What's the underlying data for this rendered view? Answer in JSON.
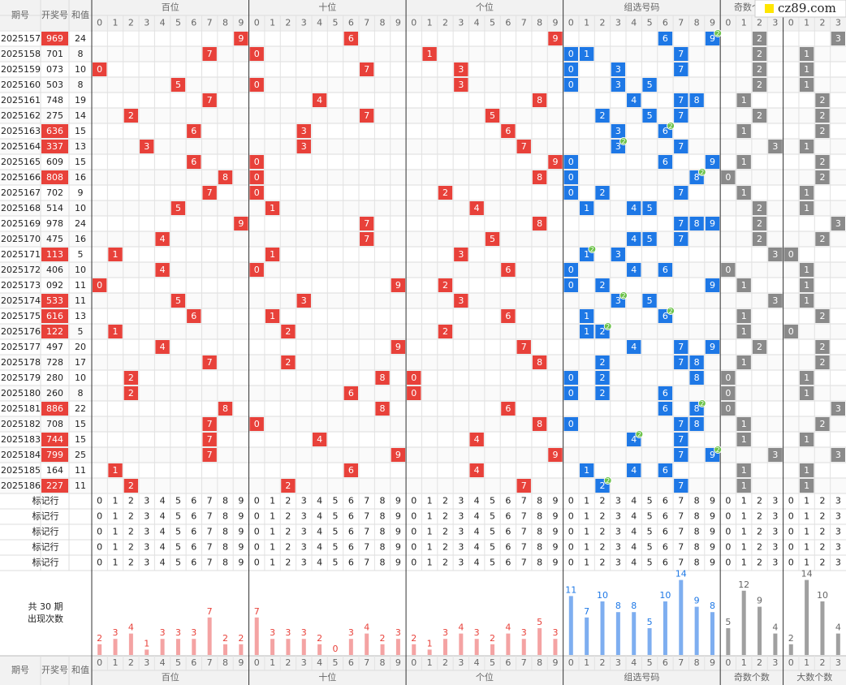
{
  "header": {
    "issue": "期号",
    "number": "开奖号",
    "sum": "和值",
    "groups": [
      "百位",
      "十位",
      "个位",
      "组选号码",
      "奇数个数",
      "大数个数"
    ]
  },
  "digits": [
    0,
    1,
    2,
    3,
    4,
    5,
    6,
    7,
    8,
    9
  ],
  "count_digits": [
    0,
    1,
    2,
    3
  ],
  "rows": [
    {
      "issue": "2025157",
      "number": "969",
      "sum": 24
    },
    {
      "issue": "2025158",
      "number": "701",
      "sum": 8
    },
    {
      "issue": "2025159",
      "number": "073",
      "sum": 10
    },
    {
      "issue": "2025160",
      "number": "503",
      "sum": 8
    },
    {
      "issue": "2025161",
      "number": "748",
      "sum": 19
    },
    {
      "issue": "2025162",
      "number": "275",
      "sum": 14
    },
    {
      "issue": "2025163",
      "number": "636",
      "sum": 15
    },
    {
      "issue": "2025164",
      "number": "337",
      "sum": 13
    },
    {
      "issue": "2025165",
      "number": "609",
      "sum": 15
    },
    {
      "issue": "2025166",
      "number": "808",
      "sum": 16
    },
    {
      "issue": "2025167",
      "number": "702",
      "sum": 9
    },
    {
      "issue": "2025168",
      "number": "514",
      "sum": 10
    },
    {
      "issue": "2025169",
      "number": "978",
      "sum": 24
    },
    {
      "issue": "2025170",
      "number": "475",
      "sum": 16
    },
    {
      "issue": "2025171",
      "number": "113",
      "sum": 5
    },
    {
      "issue": "2025172",
      "number": "406",
      "sum": 10
    },
    {
      "issue": "2025173",
      "number": "092",
      "sum": 11
    },
    {
      "issue": "2025174",
      "number": "533",
      "sum": 11
    },
    {
      "issue": "2025175",
      "number": "616",
      "sum": 13
    },
    {
      "issue": "2025176",
      "number": "122",
      "sum": 5
    },
    {
      "issue": "2025177",
      "number": "497",
      "sum": 20
    },
    {
      "issue": "2025178",
      "number": "728",
      "sum": 17
    },
    {
      "issue": "2025179",
      "number": "280",
      "sum": 10
    },
    {
      "issue": "2025180",
      "number": "260",
      "sum": 8
    },
    {
      "issue": "2025181",
      "number": "886",
      "sum": 22
    },
    {
      "issue": "2025182",
      "number": "708",
      "sum": 15
    },
    {
      "issue": "2025183",
      "number": "744",
      "sum": 15
    },
    {
      "issue": "2025184",
      "number": "799",
      "sum": 25
    },
    {
      "issue": "2025185",
      "number": "164",
      "sum": 11
    },
    {
      "issue": "2025186",
      "number": "227",
      "sum": 11
    }
  ],
  "repeat_badge": "2",
  "marker_label": "标记行",
  "stats_label": [
    "共 30 期",
    "出现次数"
  ],
  "stats": {
    "hundreds": [
      2,
      3,
      4,
      1,
      3,
      3,
      3,
      7,
      2,
      2
    ],
    "tens": [
      7,
      3,
      3,
      3,
      2,
      0,
      3,
      4,
      2,
      3
    ],
    "units": [
      2,
      1,
      3,
      4,
      3,
      2,
      4,
      3,
      5,
      3
    ],
    "group": [
      11,
      7,
      10,
      8,
      8,
      5,
      10,
      14,
      9,
      8
    ],
    "odd": [
      5,
      12,
      9,
      4
    ],
    "big": [
      2,
      14,
      10,
      4
    ]
  },
  "watermark": "cz89.com"
}
